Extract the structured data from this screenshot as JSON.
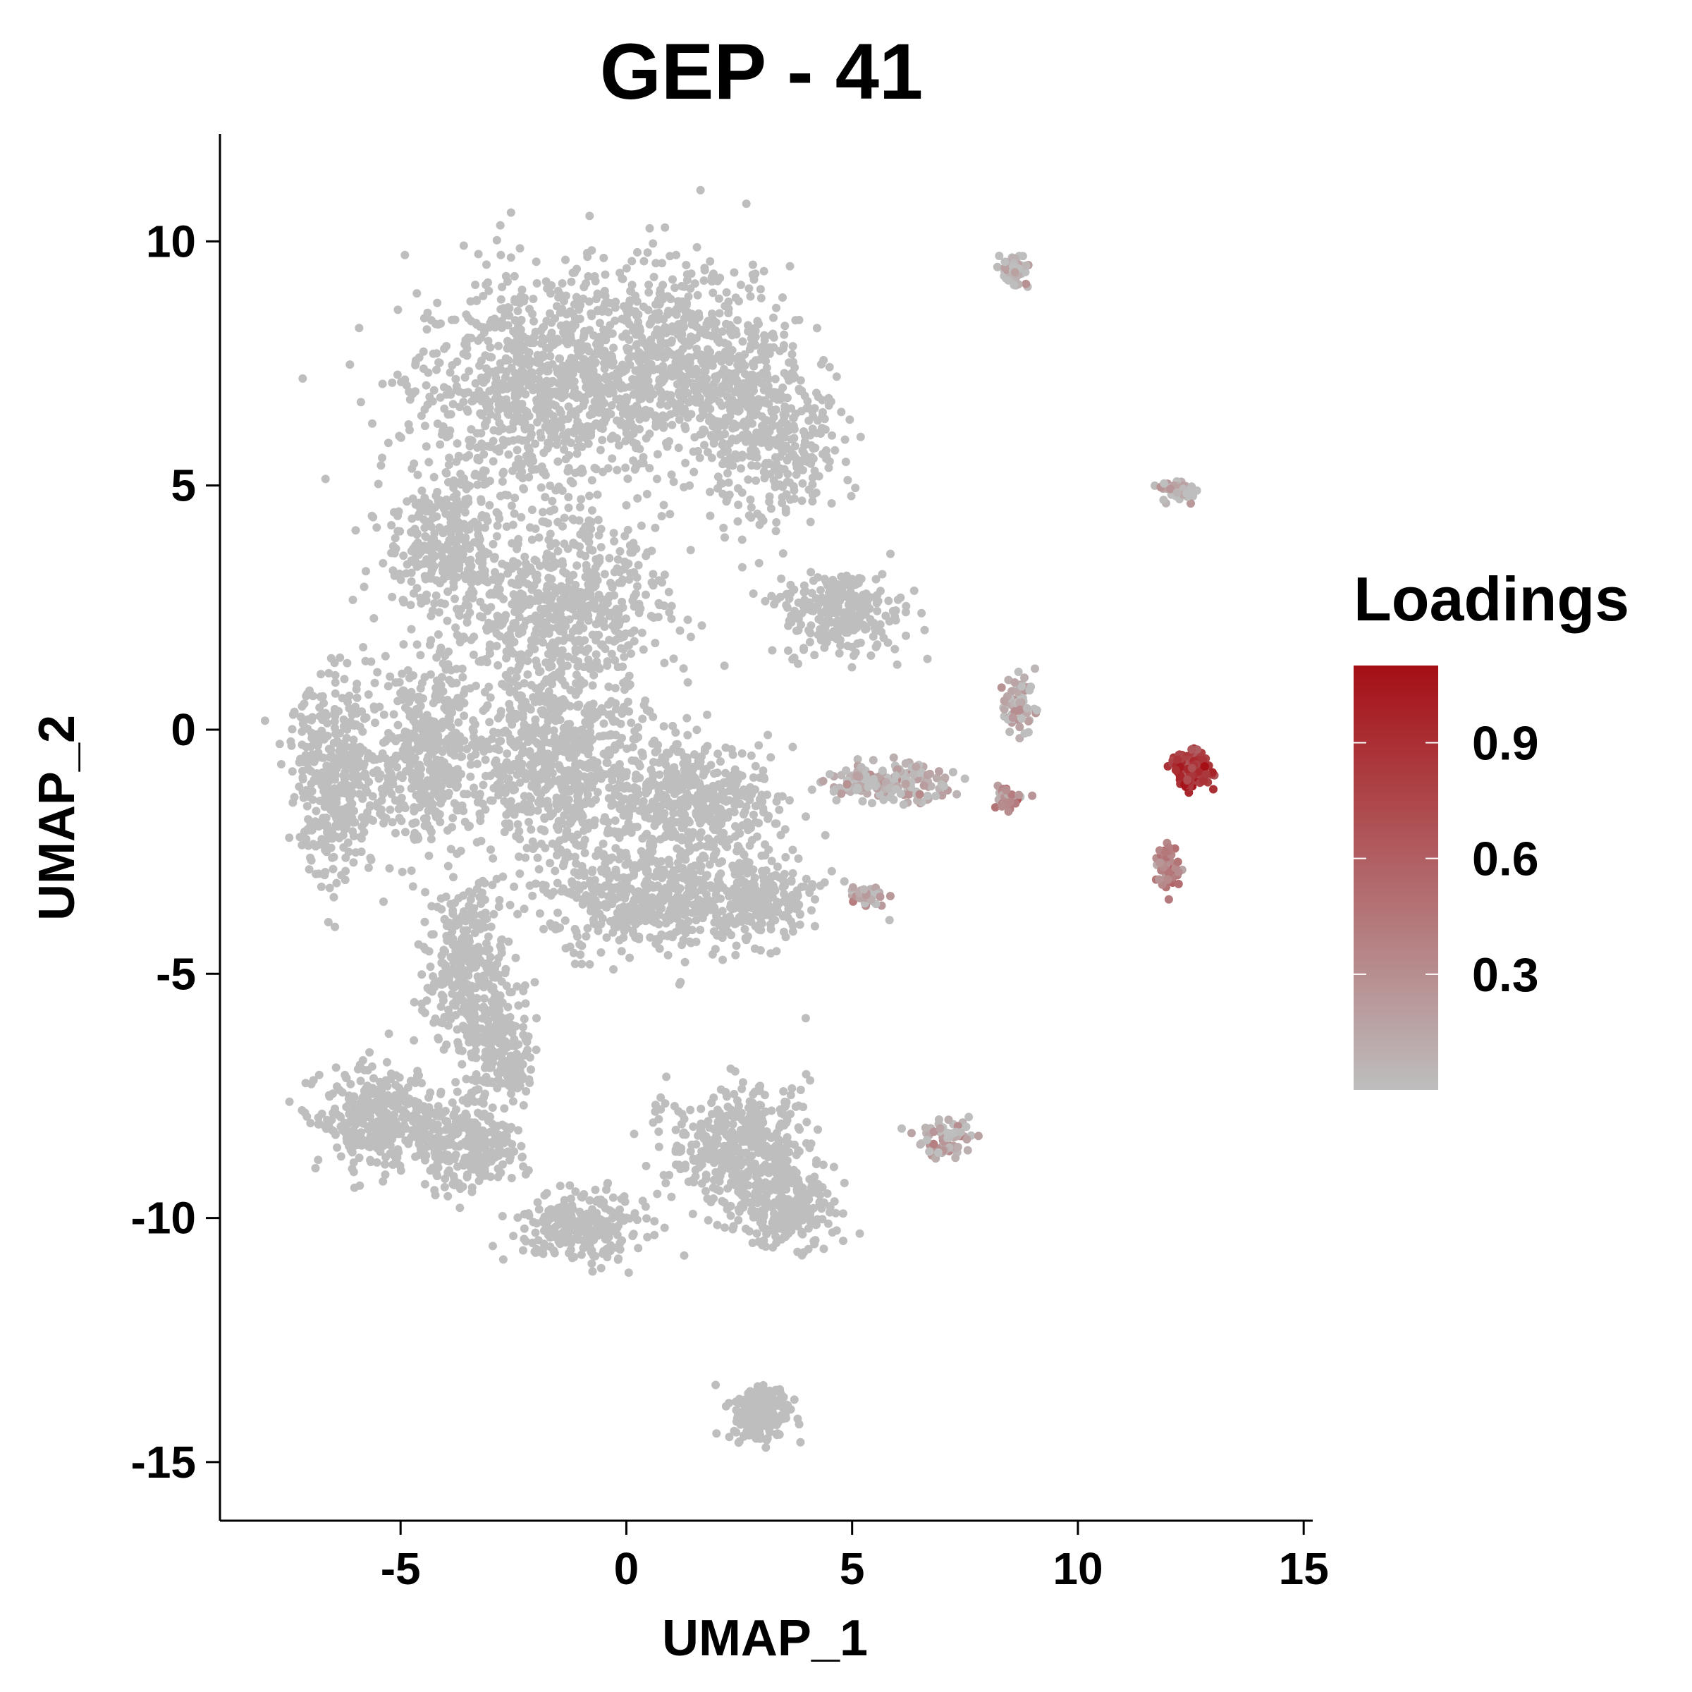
{
  "chart_data": {
    "type": "scatter",
    "title": "GEP - 41",
    "xlabel": "UMAP_1",
    "ylabel": "UMAP_2",
    "xlim": [
      -9,
      15.2
    ],
    "ylim": [
      -16.2,
      12.2
    ],
    "x_ticks": [
      -5,
      0,
      5,
      10,
      15
    ],
    "y_ticks": [
      10,
      5,
      0,
      -5,
      -10,
      -15
    ],
    "grid": false,
    "legend": {
      "title": "Loadings",
      "position": "right",
      "range": [
        0.0,
        1.1
      ],
      "ticks": [
        0.3,
        0.6,
        0.9
      ],
      "low_color": "#bebebe",
      "high_color": "#a50f15"
    },
    "clusters": [
      {
        "x": -2.0,
        "y": 7.0,
        "sx": 2.5,
        "sy": 2.2,
        "n": 900,
        "loading": 0.0
      },
      {
        "x": 1.2,
        "y": 7.5,
        "sx": 2.2,
        "sy": 1.8,
        "n": 700,
        "loading": 0.0
      },
      {
        "x": 3.2,
        "y": 6.0,
        "sx": 1.4,
        "sy": 1.6,
        "n": 350,
        "loading": 0.0
      },
      {
        "x": -4.0,
        "y": 3.8,
        "sx": 1.2,
        "sy": 1.4,
        "n": 300,
        "loading": 0.0
      },
      {
        "x": -1.5,
        "y": 2.5,
        "sx": 2.2,
        "sy": 1.6,
        "n": 600,
        "loading": 0.0
      },
      {
        "x": 4.8,
        "y": 2.4,
        "sx": 1.2,
        "sy": 0.8,
        "n": 260,
        "loading": 0.0
      },
      {
        "x": -6.5,
        "y": -1.0,
        "sx": 0.9,
        "sy": 1.8,
        "n": 380,
        "loading": 0.0
      },
      {
        "x": -4.5,
        "y": -0.5,
        "sx": 1.2,
        "sy": 1.8,
        "n": 450,
        "loading": 0.0
      },
      {
        "x": -1.5,
        "y": -0.8,
        "sx": 1.8,
        "sy": 1.8,
        "n": 700,
        "loading": 0.0
      },
      {
        "x": 1.5,
        "y": -1.5,
        "sx": 1.6,
        "sy": 1.2,
        "n": 450,
        "loading": 0.0
      },
      {
        "x": 0.5,
        "y": -3.5,
        "sx": 2.0,
        "sy": 1.0,
        "n": 450,
        "loading": 0.0
      },
      {
        "x": 3.0,
        "y": -3.5,
        "sx": 1.2,
        "sy": 0.8,
        "n": 220,
        "loading": 0.0
      },
      {
        "x": 5.8,
        "y": -1.1,
        "sx": 1.2,
        "sy": 0.35,
        "n": 180,
        "loading": 0.05
      },
      {
        "x": -3.5,
        "y": -5.0,
        "sx": 0.8,
        "sy": 1.6,
        "n": 320,
        "loading": 0.0
      },
      {
        "x": -2.8,
        "y": -6.5,
        "sx": 0.7,
        "sy": 1.2,
        "n": 220,
        "loading": 0.0
      },
      {
        "x": -5.5,
        "y": -8.0,
        "sx": 1.2,
        "sy": 0.9,
        "n": 350,
        "loading": 0.0
      },
      {
        "x": -3.5,
        "y": -8.5,
        "sx": 1.0,
        "sy": 0.8,
        "n": 250,
        "loading": 0.0
      },
      {
        "x": -1.0,
        "y": -10.2,
        "sx": 1.3,
        "sy": 0.6,
        "n": 260,
        "loading": 0.0
      },
      {
        "x": 2.5,
        "y": -8.5,
        "sx": 1.4,
        "sy": 1.1,
        "n": 420,
        "loading": 0.0
      },
      {
        "x": 3.5,
        "y": -9.8,
        "sx": 1.0,
        "sy": 0.7,
        "n": 240,
        "loading": 0.0
      },
      {
        "x": 3.0,
        "y": -14.0,
        "sx": 0.55,
        "sy": 0.5,
        "n": 220,
        "loading": 0.0
      },
      {
        "x": 8.6,
        "y": 9.4,
        "sx": 0.3,
        "sy": 0.35,
        "n": 50,
        "loading": 0.02
      },
      {
        "x": 12.2,
        "y": 4.9,
        "sx": 0.3,
        "sy": 0.2,
        "n": 45,
        "loading": 0.05
      },
      {
        "x": 8.7,
        "y": 0.5,
        "sx": 0.4,
        "sy": 0.5,
        "n": 70,
        "loading": 0.05
      },
      {
        "x": 8.4,
        "y": -1.4,
        "sx": 0.3,
        "sy": 0.25,
        "n": 40,
        "loading": 0.3
      },
      {
        "x": 12.5,
        "y": -0.8,
        "sx": 0.4,
        "sy": 0.3,
        "n": 140,
        "loading": 0.85
      },
      {
        "x": 12.0,
        "y": -2.8,
        "sx": 0.25,
        "sy": 0.4,
        "n": 55,
        "loading": 0.4
      },
      {
        "x": 7.1,
        "y": -8.4,
        "sx": 0.6,
        "sy": 0.35,
        "n": 70,
        "loading": 0.1
      },
      {
        "x": 5.3,
        "y": -3.4,
        "sx": 0.4,
        "sy": 0.2,
        "n": 35,
        "loading": 0.1
      }
    ]
  }
}
